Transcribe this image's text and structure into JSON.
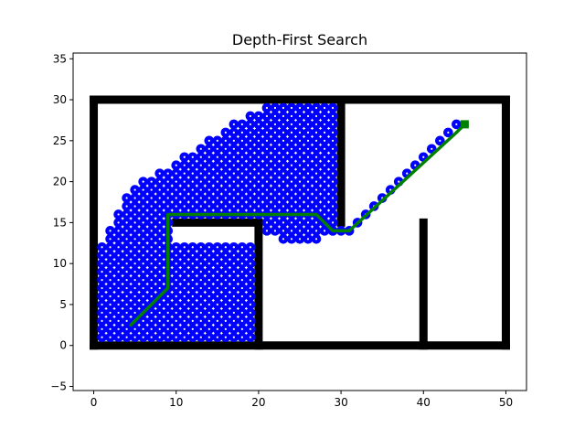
{
  "chart_data": {
    "type": "scatter",
    "title": "Depth-First Search",
    "xlabel": "",
    "ylabel": "",
    "xlim": [
      -2.5,
      52.5
    ],
    "ylim": [
      -5.5,
      35.7
    ],
    "xticks": [
      0,
      10,
      20,
      30,
      40,
      50
    ],
    "yticks": [
      -5,
      0,
      5,
      10,
      15,
      20,
      25,
      30,
      35
    ],
    "grid": false,
    "legend": "none",
    "colors": {
      "obstacle": "#000000",
      "visited": "#0000ff",
      "visited_dot": "#ffffff",
      "path": "#008000",
      "goal": "#008000",
      "frame": "#000000"
    },
    "obstacles": [
      {
        "x": [
          0,
          50
        ],
        "y": [
          0,
          0
        ]
      },
      {
        "x": [
          0,
          50
        ],
        "y": [
          30,
          30
        ]
      },
      {
        "x": [
          0,
          0
        ],
        "y": [
          0,
          30
        ]
      },
      {
        "x": [
          50,
          50
        ],
        "y": [
          0,
          30
        ]
      },
      {
        "x": [
          30,
          30
        ],
        "y": [
          15,
          30
        ]
      },
      {
        "x": [
          10,
          20
        ],
        "y": [
          15,
          15
        ]
      },
      {
        "x": [
          20,
          20
        ],
        "y": [
          0,
          15
        ]
      },
      {
        "x": [
          40,
          40
        ],
        "y": [
          0,
          15
        ]
      }
    ],
    "visited_region": [
      {
        "y": 1,
        "x_from": 1,
        "x_to": 19
      },
      {
        "y": 2,
        "x_from": 1,
        "x_to": 19
      },
      {
        "y": 3,
        "x_from": 1,
        "x_to": 19
      },
      {
        "y": 4,
        "x_from": 1,
        "x_to": 19
      },
      {
        "y": 5,
        "x_from": 1,
        "x_to": 19
      },
      {
        "y": 6,
        "x_from": 1,
        "x_to": 19
      },
      {
        "y": 7,
        "x_from": 1,
        "x_to": 19
      },
      {
        "y": 8,
        "x_from": 1,
        "x_to": 19
      },
      {
        "y": 9,
        "x_from": 1,
        "x_to": 19
      },
      {
        "y": 10,
        "x_from": 1,
        "x_to": 19
      },
      {
        "y": 11,
        "x_from": 1,
        "x_to": 19
      },
      {
        "y": 12,
        "x_from": 1,
        "x_to": 19
      },
      {
        "y": 13,
        "x_from": 2,
        "x_to": 9
      },
      {
        "y": 13,
        "x_from": 23,
        "x_to": 27
      },
      {
        "y": 14,
        "x_from": 2,
        "x_to": 9
      },
      {
        "y": 14,
        "x_from": 21,
        "x_to": 29
      },
      {
        "y": 15,
        "x_from": 3,
        "x_to": 9
      },
      {
        "y": 15,
        "x_from": 21,
        "x_to": 29
      },
      {
        "y": 16,
        "x_from": 3,
        "x_to": 29
      },
      {
        "y": 17,
        "x_from": 4,
        "x_to": 29
      },
      {
        "y": 18,
        "x_from": 4,
        "x_to": 29
      },
      {
        "y": 19,
        "x_from": 5,
        "x_to": 29
      },
      {
        "y": 20,
        "x_from": 6,
        "x_to": 29
      },
      {
        "y": 21,
        "x_from": 8,
        "x_to": 29
      },
      {
        "y": 22,
        "x_from": 10,
        "x_to": 29
      },
      {
        "y": 23,
        "x_from": 11,
        "x_to": 29
      },
      {
        "y": 24,
        "x_from": 13,
        "x_to": 29
      },
      {
        "y": 25,
        "x_from": 14,
        "x_to": 29
      },
      {
        "y": 26,
        "x_from": 16,
        "x_to": 29
      },
      {
        "y": 27,
        "x_from": 17,
        "x_to": 29
      },
      {
        "y": 28,
        "x_from": 19,
        "x_to": 29
      },
      {
        "y": 29,
        "x_from": 21,
        "x_to": 29
      }
    ],
    "visited_extra": [
      [
        29,
        14
      ],
      [
        30,
        14
      ],
      [
        31,
        14
      ],
      [
        32,
        15
      ],
      [
        33,
        16
      ],
      [
        34,
        17
      ],
      [
        35,
        18
      ],
      [
        36,
        19
      ],
      [
        37,
        20
      ],
      [
        38,
        21
      ],
      [
        39,
        22
      ],
      [
        40,
        23
      ],
      [
        41,
        24
      ],
      [
        42,
        25
      ],
      [
        43,
        26
      ],
      [
        44,
        27
      ]
    ],
    "path": [
      [
        4.5,
        2.5
      ],
      [
        9,
        7
      ],
      [
        9,
        16
      ],
      [
        27,
        16
      ],
      [
        29,
        14
      ],
      [
        31,
        14
      ],
      [
        44,
        26
      ],
      [
        45,
        27
      ]
    ],
    "goal": [
      45,
      27
    ]
  }
}
